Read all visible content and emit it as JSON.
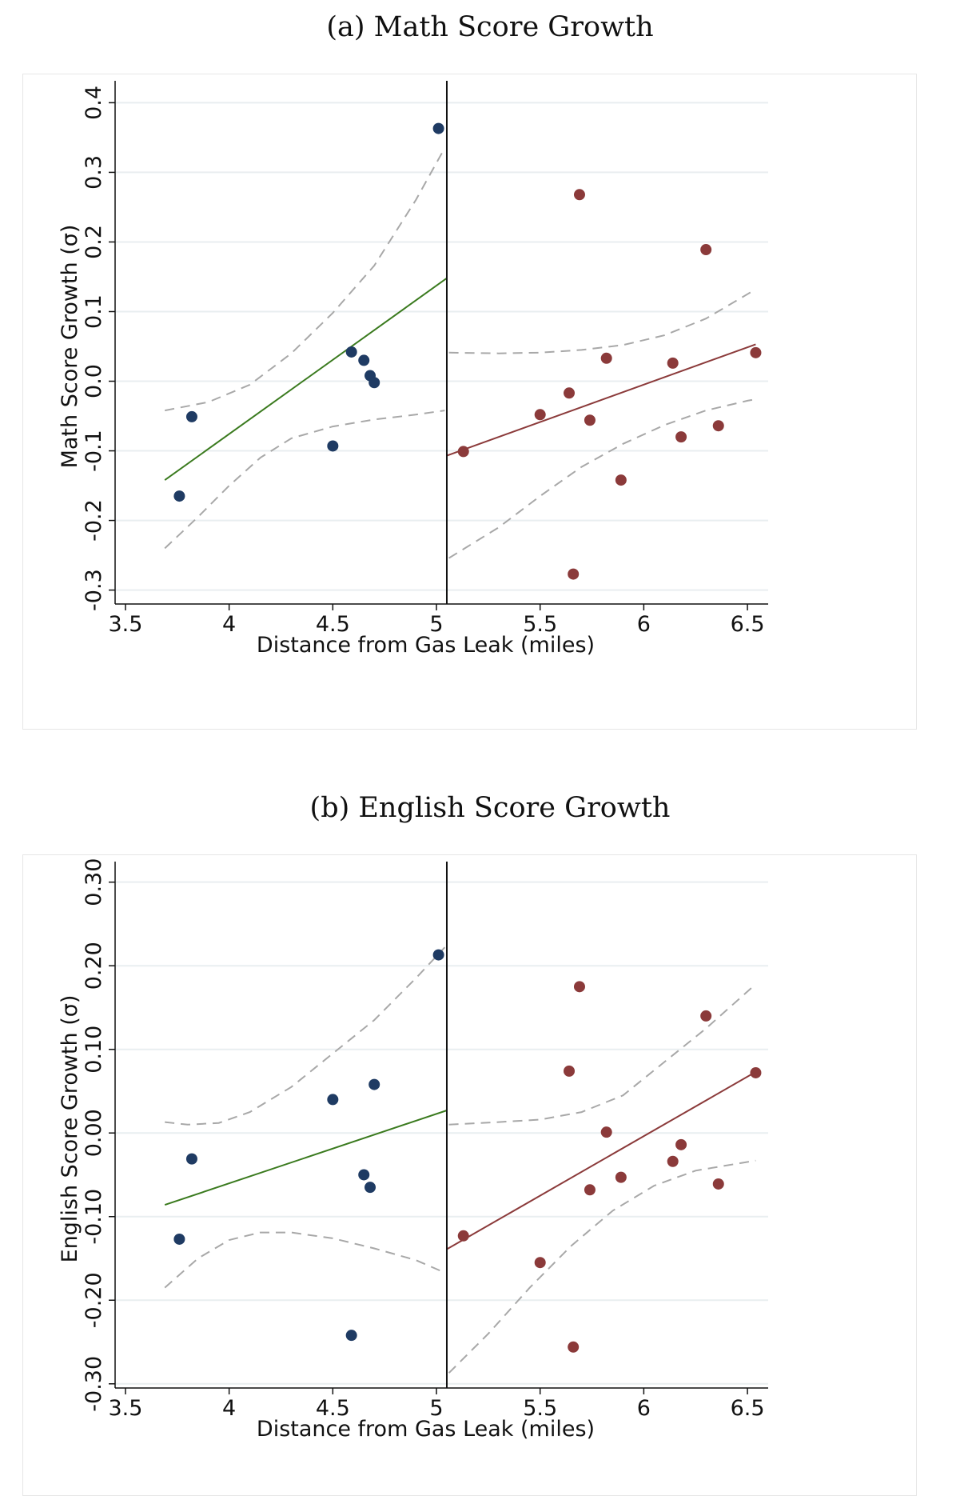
{
  "chart_data": [
    {
      "type": "scatter",
      "title": "(a) Math Score Growth",
      "xlabel": "Distance from Gas Leak (miles)",
      "ylabel": "Math Score Growth (σ)",
      "xlim": [
        3.45,
        6.6
      ],
      "ylim": [
        -0.32,
        0.42
      ],
      "xticks": [
        "3.5",
        "4",
        "4.5",
        "5",
        "5.5",
        "6",
        "6.5"
      ],
      "xtick_values": [
        3.5,
        4,
        4.5,
        5,
        5.5,
        6,
        6.5
      ],
      "yticks": [
        "-0.3",
        "-0.2",
        "-0.1",
        "0.0",
        "0.1",
        "0.2",
        "0.3",
        "0.4"
      ],
      "ytick_values": [
        -0.3,
        -0.2,
        -0.1,
        0.0,
        0.1,
        0.2,
        0.3,
        0.4
      ],
      "grid": true,
      "cutoff": 5.05,
      "series": [
        {
          "color": "#1f3b63",
          "points": [
            [
              3.76,
              -0.165
            ],
            [
              3.82,
              -0.051
            ],
            [
              4.5,
              -0.093
            ],
            [
              4.59,
              0.042
            ],
            [
              4.65,
              0.03
            ],
            [
              4.68,
              0.008
            ],
            [
              4.7,
              -0.002
            ],
            [
              5.01,
              0.363
            ]
          ]
        },
        {
          "color": "#8b3a3a",
          "points": [
            [
              5.13,
              -0.101
            ],
            [
              5.5,
              -0.048
            ],
            [
              5.64,
              -0.017
            ],
            [
              5.66,
              -0.277
            ],
            [
              5.69,
              0.268
            ],
            [
              5.74,
              -0.056
            ],
            [
              5.82,
              0.033
            ],
            [
              5.89,
              -0.142
            ],
            [
              6.14,
              0.026
            ],
            [
              6.18,
              -0.08
            ],
            [
              6.3,
              0.189
            ],
            [
              6.36,
              -0.064
            ],
            [
              6.54,
              0.041
            ]
          ]
        }
      ],
      "fits": [
        {
          "color": "#3a7a1e",
          "points": [
            [
              3.69,
              -0.142
            ],
            [
              5.05,
              0.148
            ]
          ]
        },
        {
          "color": "#8b3a3a",
          "points": [
            [
              5.05,
              -0.107
            ],
            [
              6.54,
              0.053
            ]
          ]
        }
      ],
      "bands": [
        {
          "color": "#a8a8a8",
          "points": [
            [
              3.69,
              -0.042
            ],
            [
              3.9,
              -0.03
            ],
            [
              4.1,
              -0.005
            ],
            [
              4.3,
              0.04
            ],
            [
              4.5,
              0.098
            ],
            [
              4.7,
              0.166
            ],
            [
              4.9,
              0.26
            ],
            [
              5.04,
              0.335
            ]
          ]
        },
        {
          "color": "#a8a8a8",
          "points": [
            [
              3.69,
              -0.24
            ],
            [
              3.85,
              -0.195
            ],
            [
              4.0,
              -0.15
            ],
            [
              4.15,
              -0.11
            ],
            [
              4.3,
              -0.082
            ],
            [
              4.5,
              -0.065
            ],
            [
              4.7,
              -0.055
            ],
            [
              4.9,
              -0.048
            ],
            [
              5.04,
              -0.042
            ]
          ]
        },
        {
          "color": "#a8a8a8",
          "points": [
            [
              5.06,
              0.041
            ],
            [
              5.3,
              0.04
            ],
            [
              5.5,
              0.041
            ],
            [
              5.7,
              0.045
            ],
            [
              5.9,
              0.052
            ],
            [
              6.1,
              0.066
            ],
            [
              6.3,
              0.09
            ],
            [
              6.5,
              0.125
            ],
            [
              6.54,
              0.132
            ]
          ]
        },
        {
          "color": "#a8a8a8",
          "points": [
            [
              5.06,
              -0.254
            ],
            [
              5.3,
              -0.21
            ],
            [
              5.5,
              -0.165
            ],
            [
              5.7,
              -0.123
            ],
            [
              5.9,
              -0.09
            ],
            [
              6.1,
              -0.063
            ],
            [
              6.3,
              -0.042
            ],
            [
              6.5,
              -0.028
            ],
            [
              6.54,
              -0.026
            ]
          ]
        }
      ]
    },
    {
      "type": "scatter",
      "title": "(b) English Score Growth",
      "xlabel": "Distance from Gas Leak (miles)",
      "ylabel": "English Score Growth (σ)",
      "xlim": [
        3.45,
        6.6
      ],
      "ylim": [
        -0.305,
        0.315
      ],
      "xticks": [
        "3.5",
        "4",
        "4.5",
        "5",
        "5.5",
        "6",
        "6.5"
      ],
      "xtick_values": [
        3.5,
        4,
        4.5,
        5,
        5.5,
        6,
        6.5
      ],
      "yticks": [
        "-0.30",
        "-0.20",
        "-0.10",
        "0.00",
        "0.10",
        "0.20",
        "0.30"
      ],
      "ytick_values": [
        -0.3,
        -0.2,
        -0.1,
        0.0,
        0.1,
        0.2,
        0.3
      ],
      "grid": true,
      "cutoff": 5.05,
      "series": [
        {
          "color": "#1f3b63",
          "points": [
            [
              3.76,
              -0.127
            ],
            [
              3.82,
              -0.031
            ],
            [
              4.5,
              0.04
            ],
            [
              4.59,
              -0.242
            ],
            [
              4.65,
              -0.05
            ],
            [
              4.68,
              -0.065
            ],
            [
              4.7,
              0.058
            ],
            [
              5.01,
              0.213
            ]
          ]
        },
        {
          "color": "#8b3a3a",
          "points": [
            [
              5.13,
              -0.123
            ],
            [
              5.5,
              -0.155
            ],
            [
              5.64,
              0.074
            ],
            [
              5.66,
              -0.256
            ],
            [
              5.69,
              0.175
            ],
            [
              5.74,
              -0.068
            ],
            [
              5.82,
              0.001
            ],
            [
              5.89,
              -0.053
            ],
            [
              6.14,
              -0.034
            ],
            [
              6.18,
              -0.014
            ],
            [
              6.3,
              0.14
            ],
            [
              6.36,
              -0.061
            ],
            [
              6.54,
              0.072
            ]
          ]
        }
      ],
      "fits": [
        {
          "color": "#3a7a1e",
          "points": [
            [
              3.69,
              -0.086
            ],
            [
              5.05,
              0.027
            ]
          ]
        },
        {
          "color": "#8b3a3a",
          "points": [
            [
              5.05,
              -0.139
            ],
            [
              6.54,
              0.073
            ]
          ]
        }
      ],
      "bands": [
        {
          "color": "#a8a8a8",
          "points": [
            [
              3.69,
              0.013
            ],
            [
              3.8,
              0.01
            ],
            [
              3.95,
              0.012
            ],
            [
              4.1,
              0.025
            ],
            [
              4.3,
              0.055
            ],
            [
              4.5,
              0.095
            ],
            [
              4.7,
              0.135
            ],
            [
              4.9,
              0.185
            ],
            [
              5.04,
              0.222
            ]
          ]
        },
        {
          "color": "#a8a8a8",
          "points": [
            [
              3.69,
              -0.185
            ],
            [
              3.85,
              -0.15
            ],
            [
              4.0,
              -0.128
            ],
            [
              4.15,
              -0.119
            ],
            [
              4.3,
              -0.119
            ],
            [
              4.5,
              -0.126
            ],
            [
              4.7,
              -0.138
            ],
            [
              4.9,
              -0.152
            ],
            [
              5.04,
              -0.167
            ]
          ]
        },
        {
          "color": "#a8a8a8",
          "points": [
            [
              5.06,
              0.01
            ],
            [
              5.3,
              0.013
            ],
            [
              5.5,
              0.016
            ],
            [
              5.7,
              0.025
            ],
            [
              5.9,
              0.045
            ],
            [
              6.1,
              0.085
            ],
            [
              6.3,
              0.125
            ],
            [
              6.54,
              0.178
            ]
          ]
        },
        {
          "color": "#a8a8a8",
          "points": [
            [
              5.06,
              -0.287
            ],
            [
              5.25,
              -0.24
            ],
            [
              5.45,
              -0.185
            ],
            [
              5.65,
              -0.135
            ],
            [
              5.85,
              -0.093
            ],
            [
              6.05,
              -0.063
            ],
            [
              6.25,
              -0.045
            ],
            [
              6.54,
              -0.033
            ]
          ]
        }
      ]
    }
  ]
}
